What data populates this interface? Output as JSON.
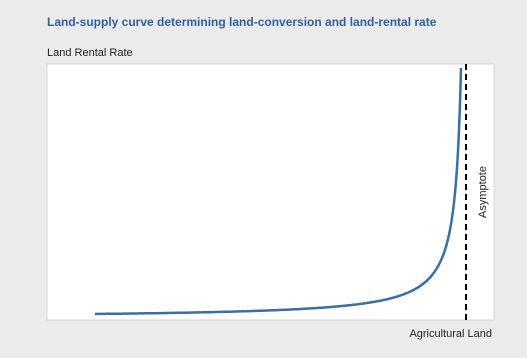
{
  "chart_data": {
    "type": "line",
    "title": "Land-supply curve determining land-conversion and land-rental rate",
    "y_label": "Land Rental Rate",
    "x_label": "Agricultural Land",
    "annotation": "Asymptote"
  }
}
